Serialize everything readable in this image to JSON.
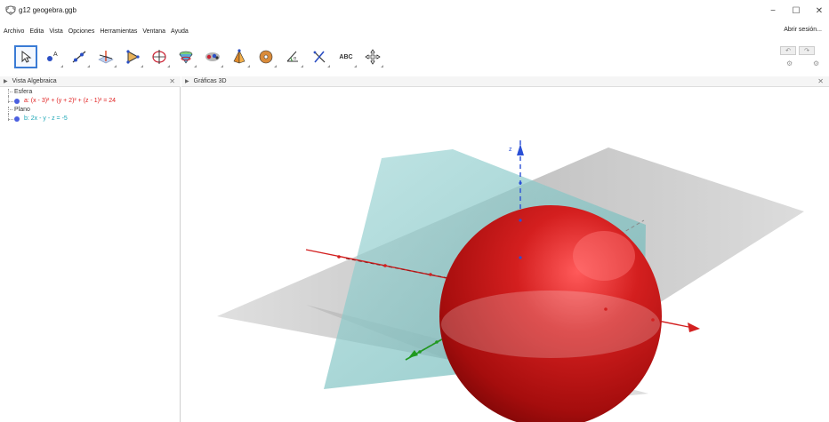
{
  "window": {
    "title": "g12 geogebra.ggb",
    "minimize": "−",
    "maximize": "☐",
    "close": "✕"
  },
  "menu": {
    "items": [
      "Archivo",
      "Edita",
      "Vista",
      "Opciones",
      "Herramientas",
      "Ventana",
      "Ayuda"
    ],
    "signin": "Abrir sesión..."
  },
  "toolbar": {
    "text_tool_label": "ABC",
    "tools": [
      "move-tool",
      "point-tool",
      "line-tool",
      "perpendicular-tool",
      "polygon-tool",
      "circle-axis-tool",
      "intersect-tool",
      "plane-tool",
      "pyramid-tool",
      "sphere-tool",
      "angle-tool",
      "reflect-tool",
      "text-tool",
      "rotate-view-tool"
    ]
  },
  "algebra_view": {
    "header": "Vista Algebraica",
    "groups": [
      {
        "label": "Esfera",
        "expression": "a: (x - 3)² + (y + 2)² + (z - 1)² = 24",
        "color": "#e02020"
      },
      {
        "label": "Plano",
        "expression": "b: 2x - y - z = -5",
        "color": "#1aa6b5"
      }
    ]
  },
  "graphics_view": {
    "header": "Gráficas 3D",
    "z_axis_label": "z",
    "colors": {
      "sphere": "#c81a1a",
      "plane": "#7fc8c8",
      "xoy_plane": "#bdbdbd",
      "x_axis": "#d32020",
      "y_axis": "#1f9a1f",
      "z_axis": "#2a4fd6"
    }
  }
}
